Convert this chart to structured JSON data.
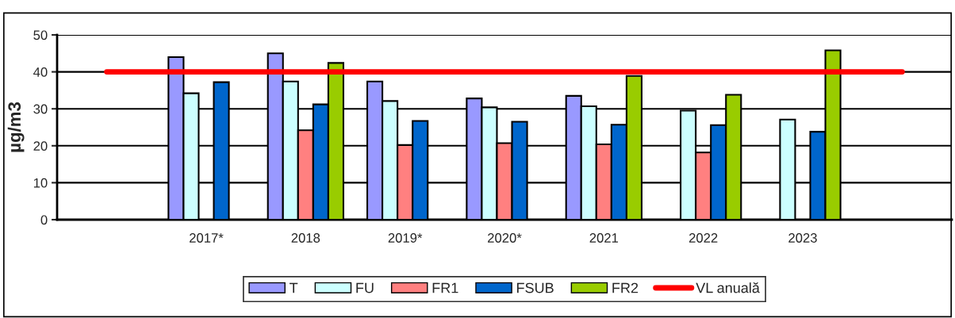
{
  "chart_data": {
    "type": "bar",
    "ylabel": "µg/m3",
    "categories": [
      null,
      "2017*",
      "2018",
      "2019*",
      "2020*",
      "2021",
      "2022",
      "2023",
      null
    ],
    "series": [
      {
        "name": "T",
        "color": "#9999ff",
        "values": [
          null,
          44,
          45,
          37.4,
          32.8,
          33.5,
          null,
          null,
          null
        ]
      },
      {
        "name": "FU",
        "color": "#ccffff",
        "values": [
          null,
          34.2,
          37.4,
          32.1,
          30.4,
          30.7,
          29.5,
          27.1,
          null
        ]
      },
      {
        "name": "FR1",
        "color": "#ff8080",
        "values": [
          null,
          null,
          24.2,
          20.2,
          20.7,
          20.4,
          18.2,
          null,
          null
        ]
      },
      {
        "name": "FSUB",
        "color": "#0066cc",
        "values": [
          null,
          37.2,
          31.2,
          26.7,
          26.5,
          25.7,
          25.6,
          23.8,
          null
        ]
      },
      {
        "name": "FR2",
        "color": "#99cc00",
        "values": [
          null,
          null,
          42.4,
          null,
          null,
          38.9,
          33.8,
          45.8,
          null
        ]
      },
      {
        "name": "VL anuală",
        "color": "#ff0000",
        "type": "line",
        "values": [
          40,
          40,
          40,
          40,
          40,
          40,
          40,
          40,
          40
        ]
      }
    ],
    "ylim": [
      0,
      50
    ],
    "yticks": [
      0,
      10,
      20,
      30,
      40,
      50
    ],
    "grid": "y",
    "legend": "bottom",
    "marker": "none",
    "line_style": "solid"
  }
}
